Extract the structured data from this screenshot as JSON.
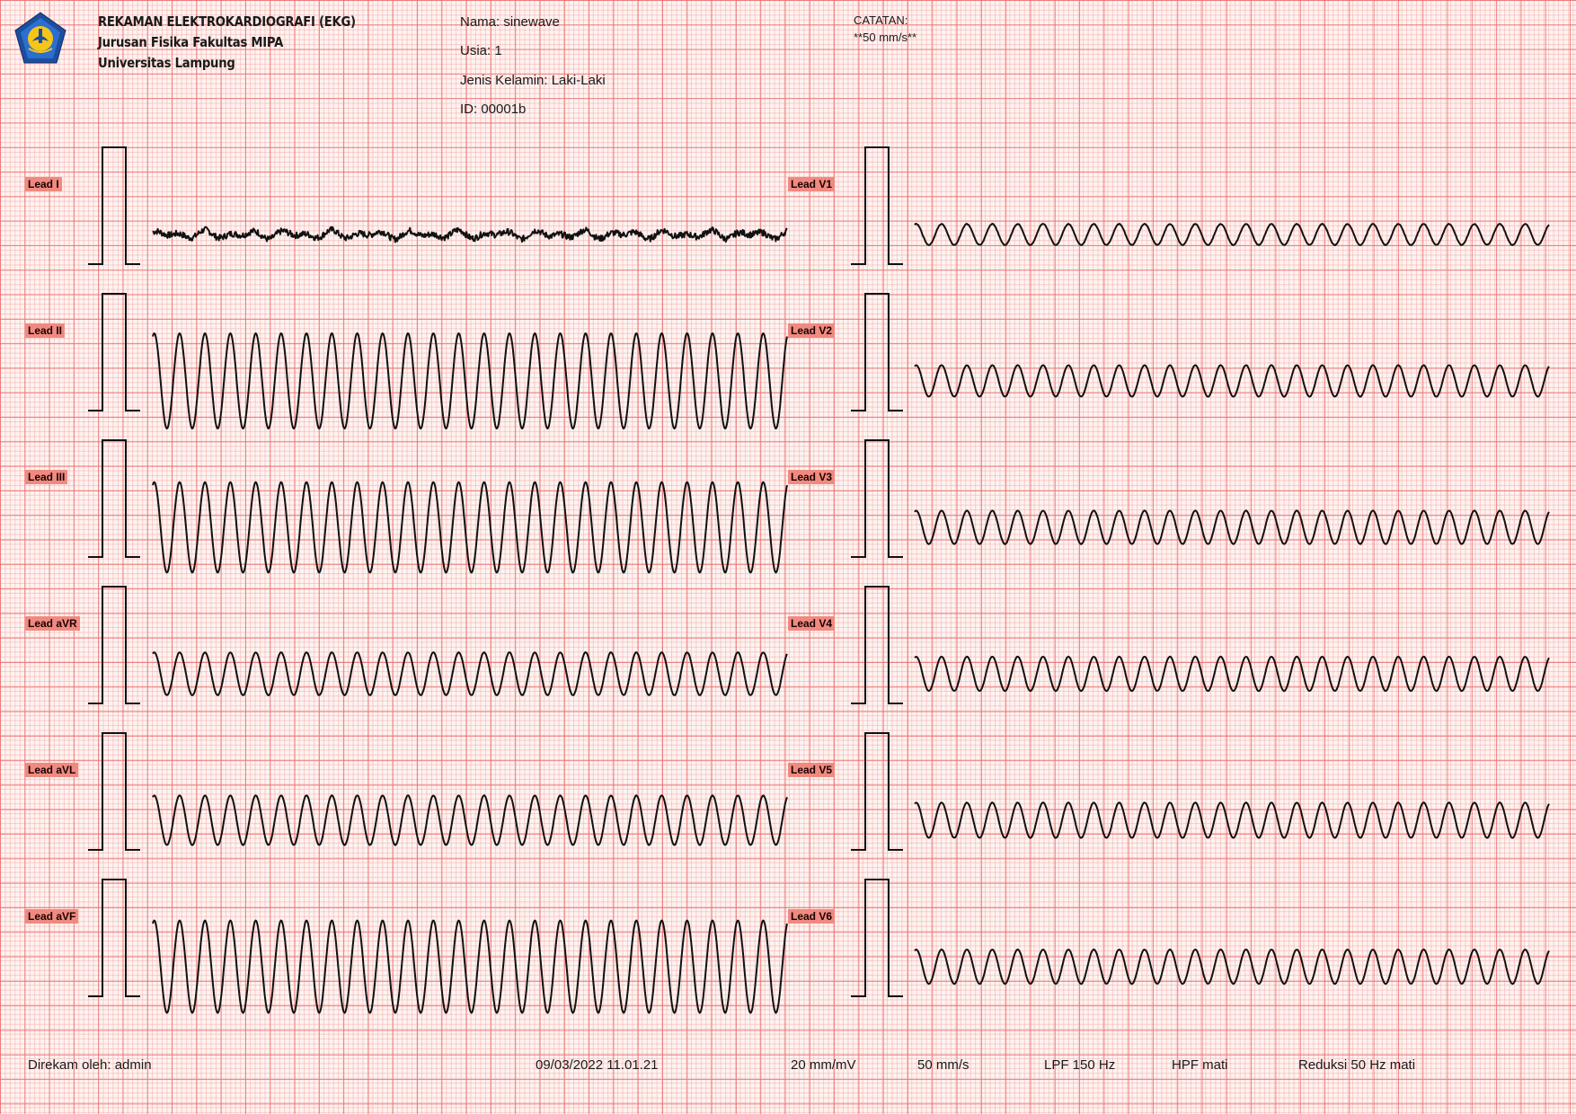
{
  "header": {
    "title": "REKAMAN ELEKTROKARDIOGRAFI (EKG)",
    "department": "Jurusan Fisika Fakultas MIPA",
    "university": "Universitas Lampung",
    "logo_text": "UNIVERSITAS LAMPUNG",
    "logo_colors": {
      "ring": "#1d4e9e",
      "face": "#f5c518",
      "inner": "#2a6fd1"
    }
  },
  "patient": {
    "name": "Nama: sinewave",
    "age": "Usia: 1",
    "sex": "Jenis Kelamin: Laki-Laki",
    "id": "ID: 00001b"
  },
  "notes": {
    "label": "CATATAN:",
    "text": "**50 mm/s**"
  },
  "leads": {
    "left": [
      {
        "label": "Lead I",
        "amplitude": 0.05,
        "noise": 0.5,
        "cycles": 25
      },
      {
        "label": "Lead II",
        "amplitude": 1.0,
        "noise": 0.0,
        "cycles": 25
      },
      {
        "label": "Lead III",
        "amplitude": 0.95,
        "noise": 0.0,
        "cycles": 25
      },
      {
        "label": "Lead aVR",
        "amplitude": 0.45,
        "noise": 0.03,
        "cycles": 25
      },
      {
        "label": "Lead aVL",
        "amplitude": 0.52,
        "noise": 0.02,
        "cycles": 25
      },
      {
        "label": "Lead aVF",
        "amplitude": 0.97,
        "noise": 0.0,
        "cycles": 25
      }
    ],
    "right": [
      {
        "label": "Lead V1",
        "amplitude": 0.22,
        "noise": 0.05,
        "cycles": 25
      },
      {
        "label": "Lead V2",
        "amplitude": 0.33,
        "noise": 0.02,
        "cycles": 25
      },
      {
        "label": "Lead V3",
        "amplitude": 0.35,
        "noise": 0.02,
        "cycles": 25
      },
      {
        "label": "Lead V4",
        "amplitude": 0.36,
        "noise": 0.02,
        "cycles": 25
      },
      {
        "label": "Lead V5",
        "amplitude": 0.37,
        "noise": 0.02,
        "cycles": 25
      },
      {
        "label": "Lead V6",
        "amplitude": 0.36,
        "noise": 0.02,
        "cycles": 25
      }
    ]
  },
  "footer": {
    "recorded_by": "Direkam oleh: admin",
    "datetime": "09/03/2022 11.01.21",
    "gain": "20 mm/mV",
    "speed": "50 mm/s",
    "lpf": "LPF 150 Hz",
    "hpf": "HPF mati",
    "notch": "Reduksi 50 Hz mati"
  }
}
